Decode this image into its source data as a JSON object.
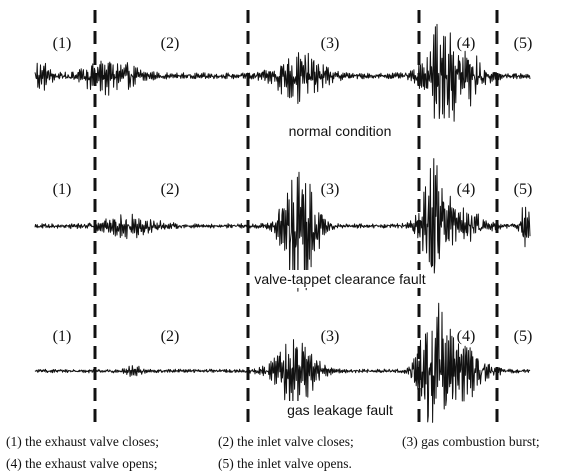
{
  "chart_data": {
    "type": "line",
    "segment_labels": [
      "(1)",
      "(2)",
      "(3)",
      "(4)",
      "(5)"
    ],
    "series": [
      {
        "name": "normal condition",
        "bursts": [
          {
            "center": 0.01,
            "width": 0.015,
            "amp": 0.28
          },
          {
            "center": 0.15,
            "width": 0.04,
            "amp": 0.32
          },
          {
            "center": 0.535,
            "width": 0.035,
            "amp": 0.5
          },
          {
            "center": 0.82,
            "width": 0.025,
            "amp": 0.95
          },
          {
            "center": 0.87,
            "width": 0.025,
            "amp": 0.55
          }
        ],
        "noise": 0.06
      },
      {
        "name": "valve-tappet clearance fault",
        "bursts": [
          {
            "center": 0.19,
            "width": 0.04,
            "amp": 0.16
          },
          {
            "center": 0.535,
            "width": 0.025,
            "amp": 1.0
          },
          {
            "center": 0.81,
            "width": 0.02,
            "amp": 1.0
          },
          {
            "center": 0.875,
            "width": 0.025,
            "amp": 0.25
          },
          {
            "center": 0.99,
            "width": 0.006,
            "amp": 0.45
          }
        ],
        "noise": 0.035
      },
      {
        "name": "gas leakage fault",
        "bursts": [
          {
            "center": 0.2,
            "width": 0.01,
            "amp": 0.1
          },
          {
            "center": 0.525,
            "width": 0.03,
            "amp": 0.55
          },
          {
            "center": 0.805,
            "width": 0.02,
            "amp": 1.0
          },
          {
            "center": 0.86,
            "width": 0.035,
            "amp": 0.4
          }
        ],
        "noise": 0.025
      }
    ],
    "legend": [
      "(1) the exhaust valve closes;",
      "(2) the inlet valve closes;",
      "(3) gas combustion burst;",
      "(4) the exhaust valve opens;",
      "(5) the inlet valve opens."
    ],
    "grid": false
  }
}
